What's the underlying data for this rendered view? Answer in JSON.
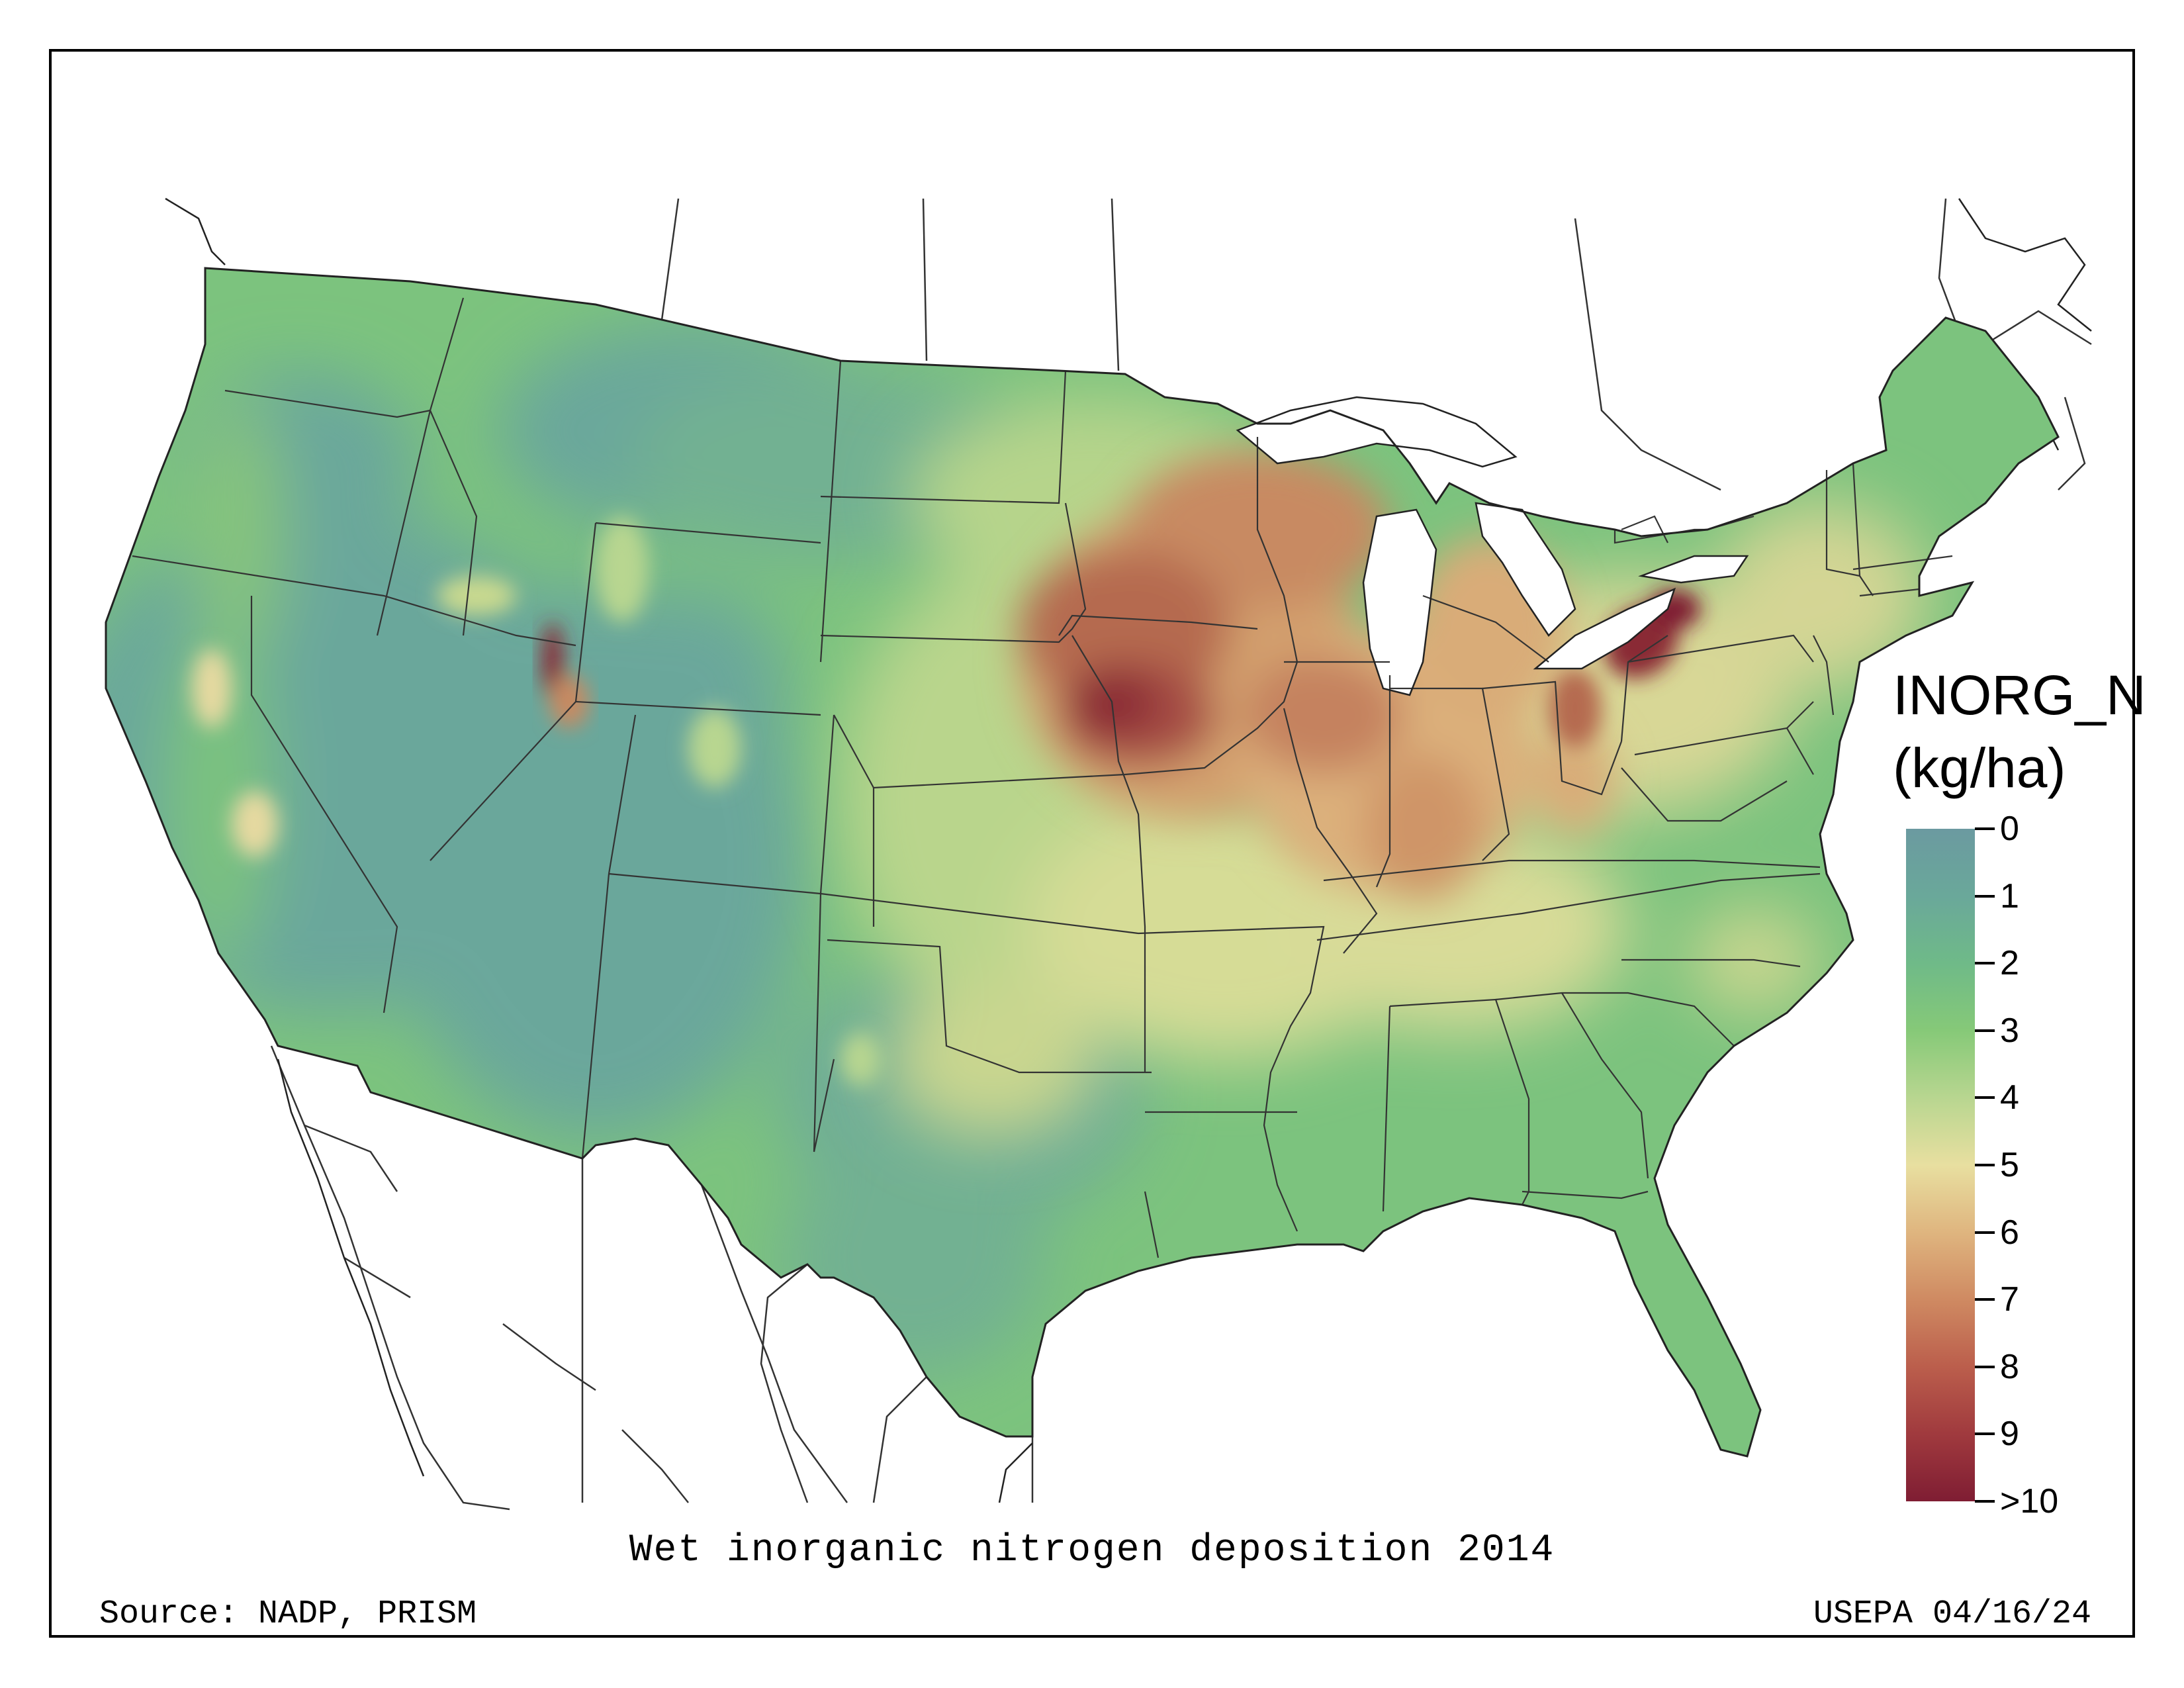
{
  "map": {
    "title": "Wet inorganic nitrogen deposition 2014",
    "source": "Source: NADP, PRISM",
    "credit": "USEPA 04/16/24",
    "variable": "INORG_N",
    "units": "(kg/ha)"
  },
  "legend": {
    "labels": [
      "0",
      "1",
      "2",
      "3",
      "4",
      "5",
      "6",
      "7",
      "8",
      "9",
      ">10"
    ],
    "colors": [
      "#6b9aa0",
      "#6aa89a",
      "#6fba88",
      "#86c978",
      "#b8d690",
      "#e8dfa0",
      "#dfb57f",
      "#cf8a62",
      "#bb5e4c",
      "#a03a3e",
      "#7f1d33"
    ]
  },
  "regions": {
    "colors": {
      "west_low": "#6aa79b",
      "green": "#79c27d",
      "light_green": "#9ccd7d",
      "yellow_green": "#c9d98f",
      "tan": "#e6d9a0",
      "orange": "#d3a06e",
      "brown": "#b56b4f",
      "dark_red": "#8a2a36"
    }
  }
}
